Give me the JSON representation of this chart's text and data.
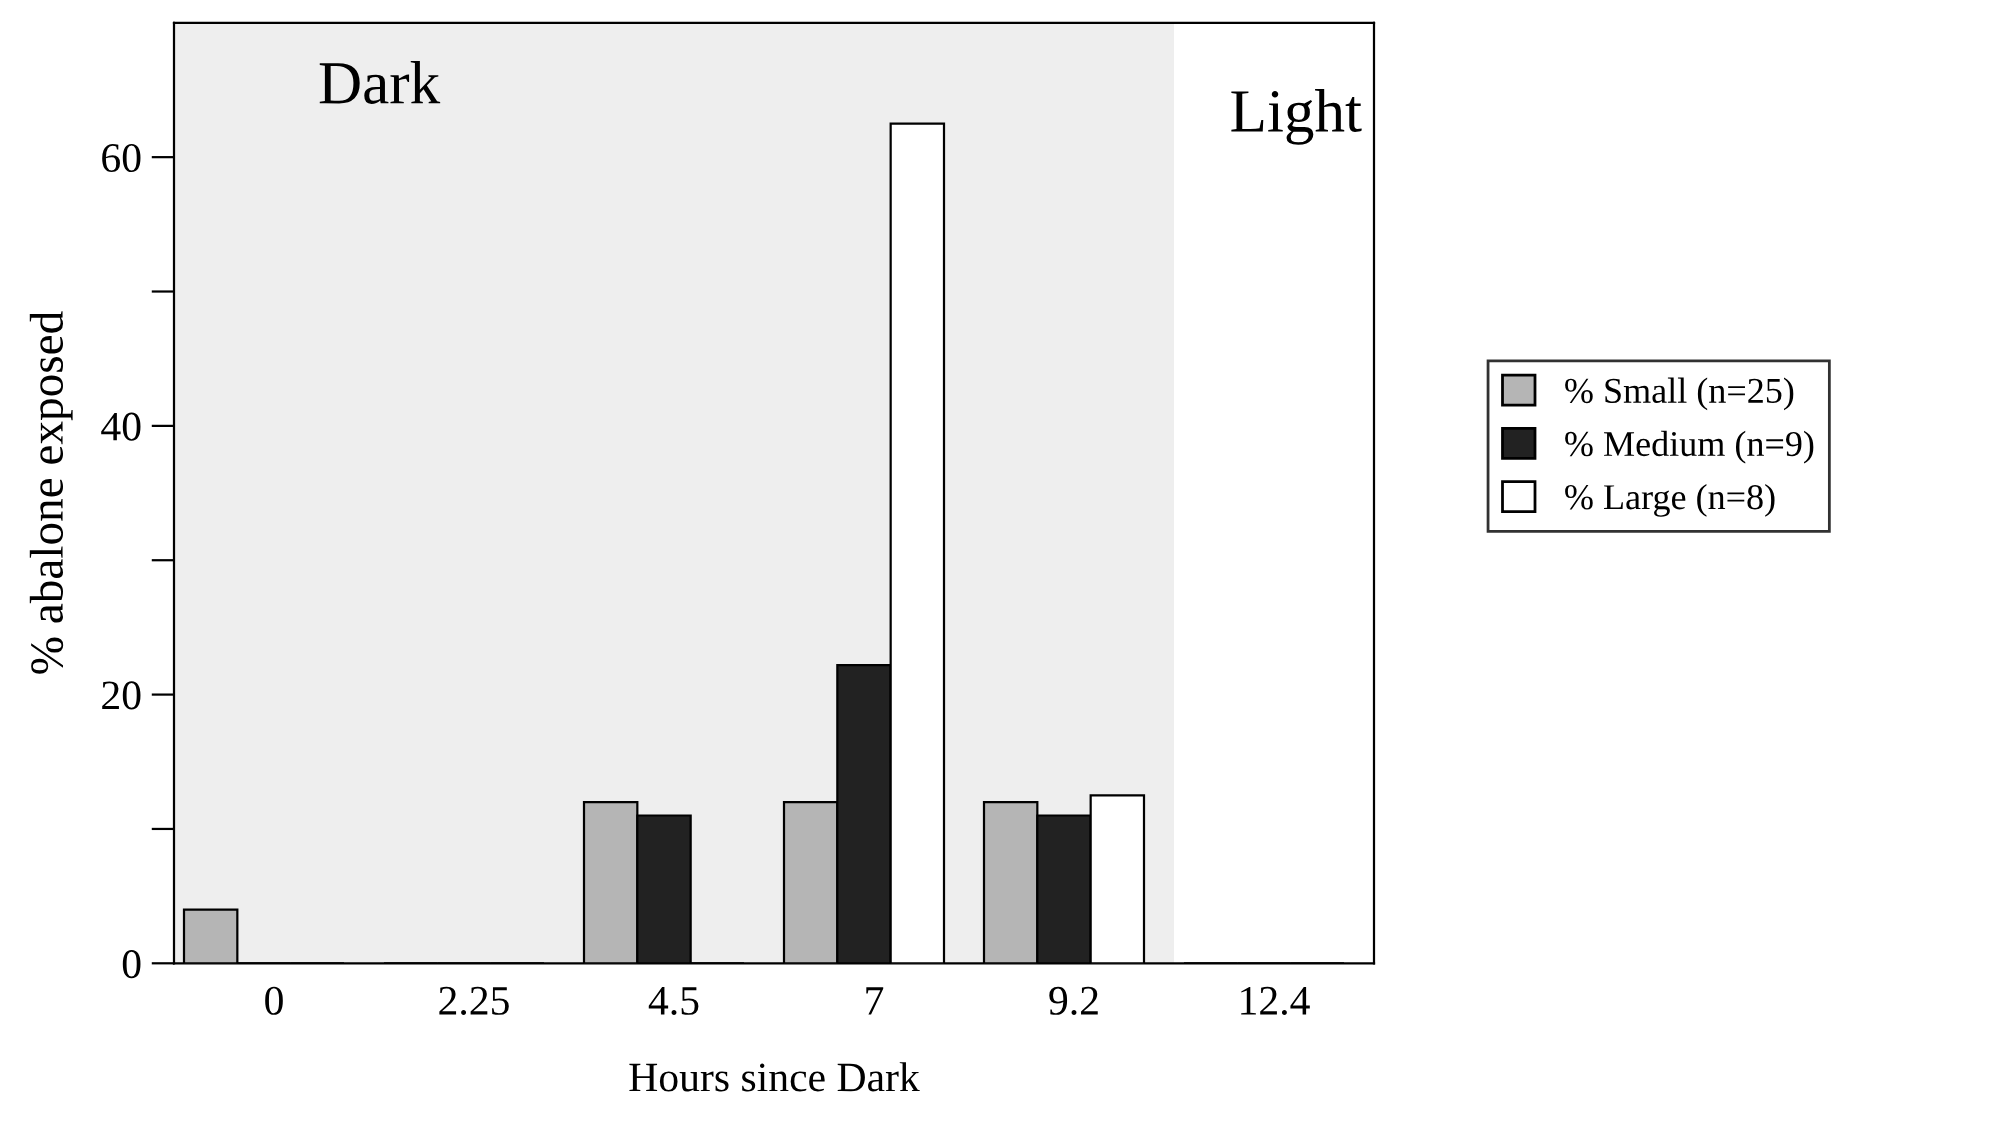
{
  "chart_data": {
    "type": "bar",
    "categories": [
      "0",
      "2.25",
      "4.5",
      "7",
      "9.2",
      "12.4"
    ],
    "series": [
      {
        "name": "% Small (n=25)",
        "color": "#b5b5b5",
        "values": [
          4,
          0,
          12,
          12,
          12,
          0
        ]
      },
      {
        "name": "% Medium (n=9)",
        "color": "#222222",
        "values": [
          0,
          0,
          11,
          22.2,
          11,
          0
        ]
      },
      {
        "name": "% Large (n=8)",
        "color": "#ffffff",
        "values": [
          0,
          0,
          0,
          62.5,
          12.5,
          0
        ]
      }
    ],
    "xlabel": "Hours since Dark",
    "ylabel": "% abalone exposed",
    "ylim": [
      0,
      70
    ],
    "yticks": [
      0,
      {
        "value": 10,
        "label": null
      },
      20,
      {
        "value": 30,
        "label": null
      },
      40,
      {
        "value": 50,
        "label": null
      },
      60
    ],
    "annotations": [
      "Dark",
      "Light"
    ],
    "bands": [
      {
        "axis": "x",
        "from": "0",
        "to": "9.2",
        "color": "#eeeeee"
      }
    ],
    "legend": "right",
    "grid": false
  }
}
